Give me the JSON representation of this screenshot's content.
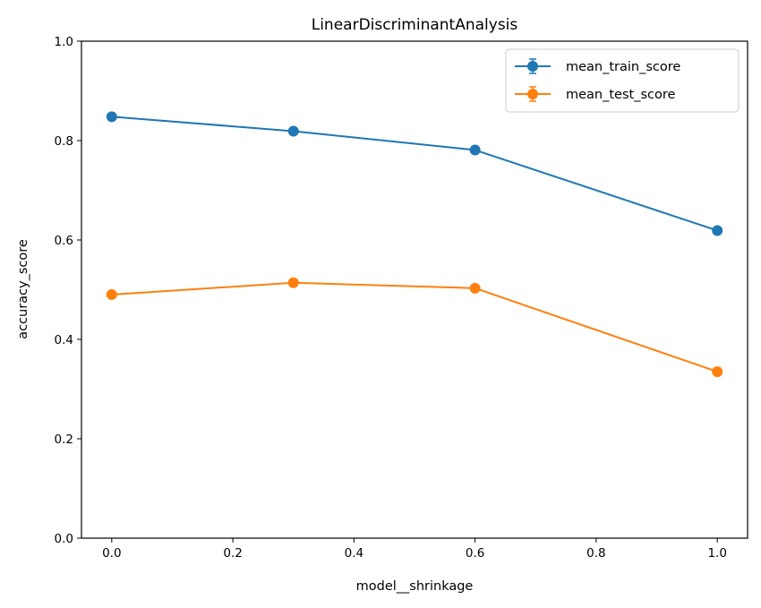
{
  "chart_data": {
    "type": "line",
    "title": "LinearDiscriminantAnalysis",
    "xlabel": "model__shrinkage",
    "ylabel": "accuracy_score",
    "x": [
      0.0,
      0.3,
      0.6,
      1.0
    ],
    "xlim": [
      -0.05,
      1.05
    ],
    "ylim": [
      0.0,
      1.0
    ],
    "xticks": [
      "0.0",
      "0.2",
      "0.4",
      "0.6",
      "0.8",
      "1.0"
    ],
    "yticks": [
      "0.0",
      "0.2",
      "0.4",
      "0.6",
      "0.8",
      "1.0"
    ],
    "grid": false,
    "legend_position": "top-right",
    "series": [
      {
        "name": "mean_train_score",
        "values": [
          0.848,
          0.819,
          0.781,
          0.619
        ],
        "color": "#1f77b4"
      },
      {
        "name": "mean_test_score",
        "values": [
          0.49,
          0.514,
          0.503,
          0.335
        ],
        "color": "#ff7f0e"
      }
    ]
  }
}
